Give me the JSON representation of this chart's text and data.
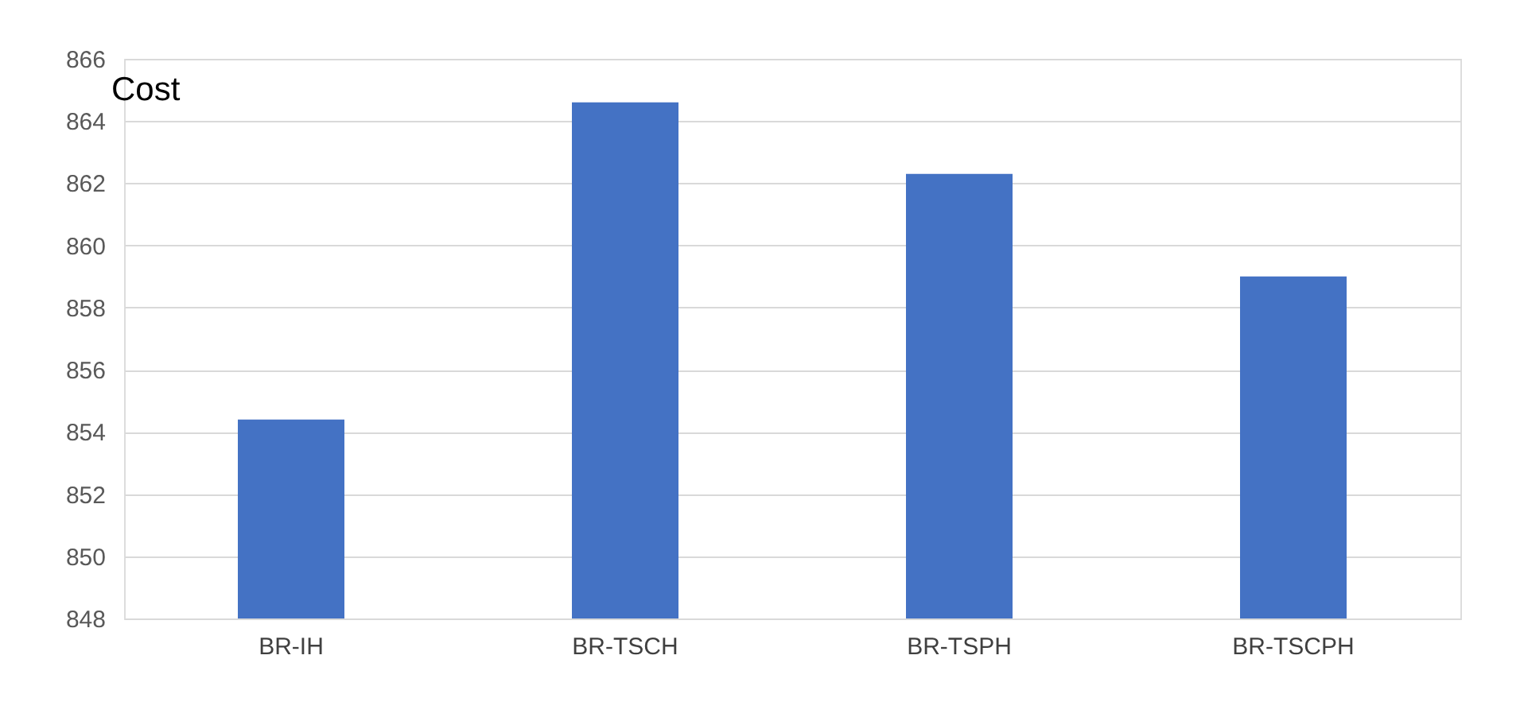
{
  "chart_data": {
    "type": "bar",
    "title": "Cost",
    "categories": [
      "BR-IH",
      "BR-TSCH",
      "BR-TSPH",
      "BR-TSCPH"
    ],
    "values": [
      854.4,
      864.6,
      862.3,
      859.0
    ],
    "color": "#4472c4",
    "ylim": [
      848,
      866
    ],
    "yticks": [
      848,
      850,
      852,
      854,
      856,
      858,
      860,
      862,
      864,
      866
    ],
    "grid": "y"
  }
}
